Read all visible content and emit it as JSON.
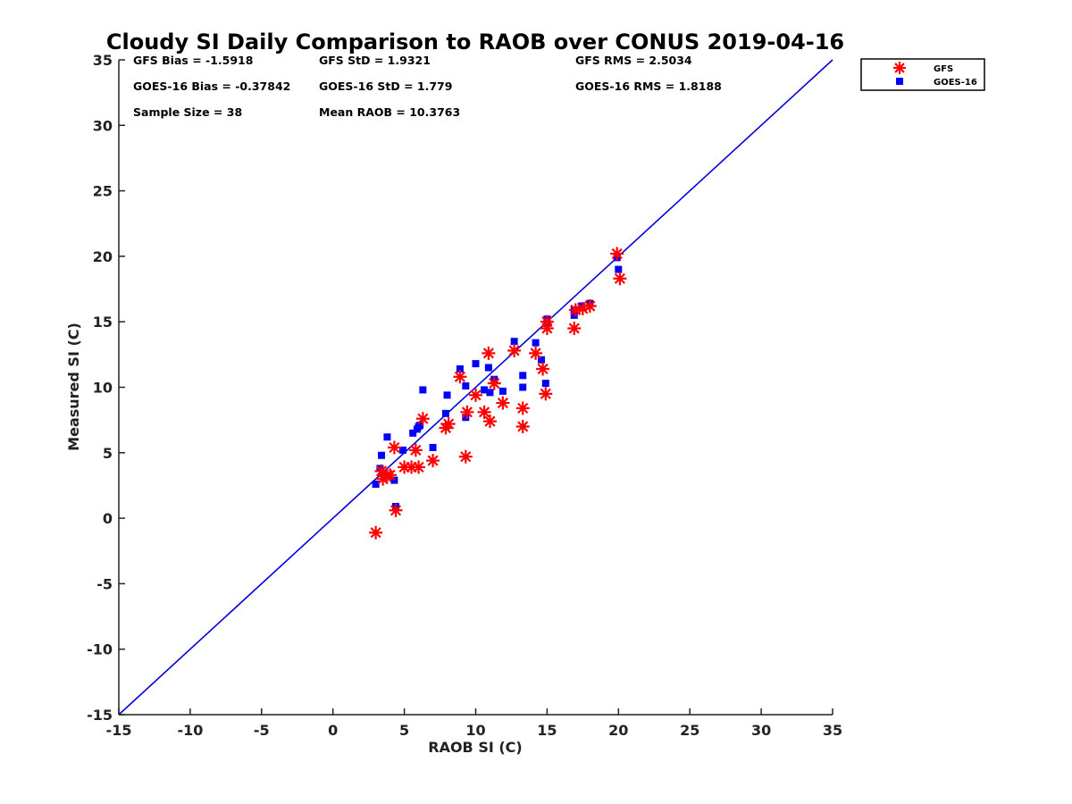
{
  "chart_data": {
    "type": "scatter",
    "title": "Cloudy SI Daily Comparison to RAOB over CONUS 2019-04-16",
    "xlabel": "RAOB SI (C)",
    "ylabel": "Measured SI (C)",
    "xlim": [
      -15,
      35
    ],
    "ylim": [
      -15,
      35
    ],
    "xticks": [
      -15,
      -10,
      -5,
      0,
      5,
      10,
      15,
      20,
      25,
      30,
      35
    ],
    "yticks": [
      -15,
      -10,
      -5,
      0,
      5,
      10,
      15,
      20,
      25,
      30,
      35
    ],
    "grid": false,
    "legend_position": "outside-top-right",
    "one_to_one_line": {
      "from": [
        -15,
        -15
      ],
      "to": [
        35,
        35
      ],
      "color": "#0000dd"
    },
    "stats": [
      {
        "label": "GFS Bias = -1.5918"
      },
      {
        "label": "GFS StD = 1.9321"
      },
      {
        "label": "GFS RMS = 2.5034"
      },
      {
        "label": "GOES-16 Bias = -0.37842"
      },
      {
        "label": "GOES-16 StD = 1.779"
      },
      {
        "label": "GOES-16 RMS = 1.8188"
      },
      {
        "label": "Sample Size = 38"
      },
      {
        "label": "Mean RAOB = 10.3763"
      }
    ],
    "series": [
      {
        "name": "GFS",
        "marker": "asterisk",
        "color": "#ff0000",
        "points": [
          [
            3.0,
            -1.1
          ],
          [
            3.4,
            3.6
          ],
          [
            3.5,
            3.0
          ],
          [
            3.8,
            3.3
          ],
          [
            4.0,
            3.3
          ],
          [
            4.3,
            5.4
          ],
          [
            4.4,
            0.6
          ],
          [
            5.0,
            3.9
          ],
          [
            5.5,
            3.9
          ],
          [
            5.8,
            5.2
          ],
          [
            6.0,
            3.9
          ],
          [
            6.3,
            7.6
          ],
          [
            7.0,
            4.4
          ],
          [
            7.9,
            6.9
          ],
          [
            8.1,
            7.2
          ],
          [
            8.9,
            10.8
          ],
          [
            9.3,
            4.7
          ],
          [
            9.4,
            8.1
          ],
          [
            10.0,
            9.4
          ],
          [
            10.6,
            8.1
          ],
          [
            10.9,
            12.6
          ],
          [
            11.0,
            7.4
          ],
          [
            11.3,
            10.3
          ],
          [
            11.9,
            8.8
          ],
          [
            12.7,
            12.8
          ],
          [
            13.3,
            8.4
          ],
          [
            13.3,
            7.0
          ],
          [
            14.2,
            12.6
          ],
          [
            14.7,
            11.4
          ],
          [
            14.9,
            9.5
          ],
          [
            15.0,
            15.0
          ],
          [
            15.0,
            14.5
          ],
          [
            16.9,
            14.5
          ],
          [
            17.0,
            15.9
          ],
          [
            17.5,
            16.0
          ],
          [
            18.0,
            16.2
          ],
          [
            19.9,
            20.2
          ],
          [
            20.1,
            18.3
          ]
        ]
      },
      {
        "name": "GOES-16",
        "marker": "square",
        "color": "#0000ff",
        "points": [
          [
            3.0,
            2.6
          ],
          [
            3.3,
            3.8
          ],
          [
            3.4,
            4.8
          ],
          [
            3.8,
            6.2
          ],
          [
            4.3,
            2.9
          ],
          [
            4.4,
            0.9
          ],
          [
            4.9,
            5.2
          ],
          [
            5.6,
            6.5
          ],
          [
            5.9,
            6.8
          ],
          [
            6.1,
            7.1
          ],
          [
            6.3,
            9.8
          ],
          [
            7.0,
            5.4
          ],
          [
            7.9,
            8.0
          ],
          [
            8.0,
            9.4
          ],
          [
            8.9,
            11.4
          ],
          [
            9.3,
            10.1
          ],
          [
            9.3,
            7.7
          ],
          [
            10.0,
            11.8
          ],
          [
            10.6,
            9.8
          ],
          [
            10.9,
            11.5
          ],
          [
            11.0,
            9.6
          ],
          [
            11.3,
            10.6
          ],
          [
            11.9,
            9.7
          ],
          [
            12.7,
            13.5
          ],
          [
            13.3,
            10.9
          ],
          [
            13.3,
            10.0
          ],
          [
            14.2,
            13.4
          ],
          [
            14.6,
            12.1
          ],
          [
            14.9,
            10.3
          ],
          [
            15.0,
            15.2
          ],
          [
            16.9,
            15.5
          ],
          [
            16.9,
            15.9
          ],
          [
            17.4,
            16.2
          ],
          [
            18.0,
            16.4
          ],
          [
            19.9,
            19.9
          ],
          [
            20.0,
            19.0
          ],
          [
            15.0,
            14.9
          ],
          [
            6.0,
            7.0
          ]
        ]
      }
    ]
  }
}
